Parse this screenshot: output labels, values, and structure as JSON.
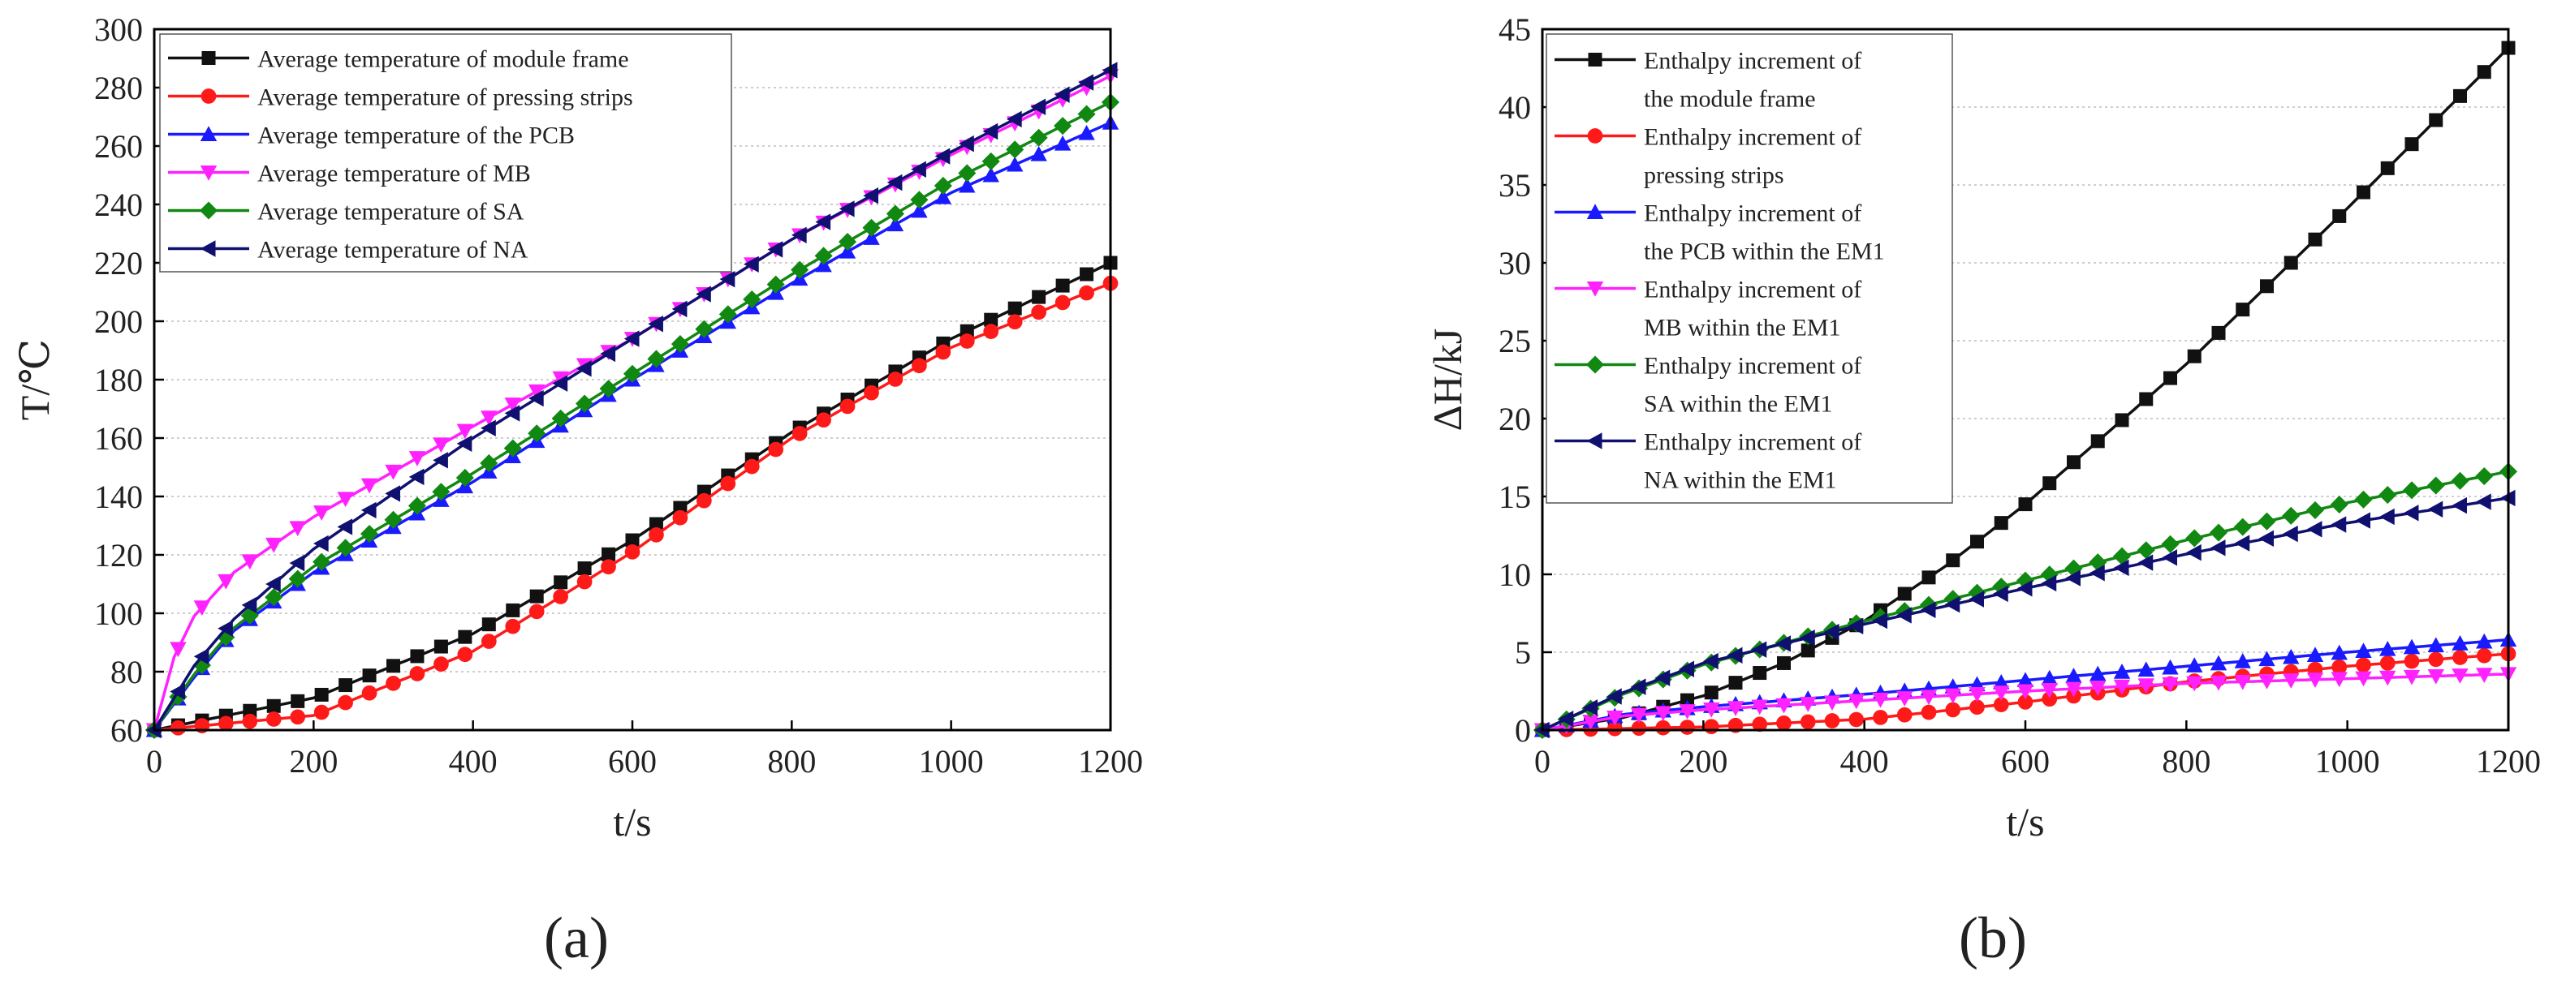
{
  "figure": {
    "panels": [
      "(a)",
      "(b)"
    ]
  },
  "chart_data": [
    {
      "type": "line",
      "panel_label": "(a)",
      "title": "",
      "xlabel": "t/s",
      "ylabel": "T/℃",
      "xlim": [
        0,
        1200
      ],
      "ylim": [
        60,
        300
      ],
      "xticks": [
        0,
        200,
        400,
        600,
        800,
        1000,
        1200
      ],
      "yticks": [
        60,
        80,
        100,
        120,
        140,
        160,
        180,
        200,
        220,
        240,
        260,
        280,
        300
      ],
      "grid": "horizontal-dotted",
      "legend_position": "top-left",
      "marker_interval": 30,
      "series": [
        {
          "name": "Average temperature of module frame",
          "color": "#111111",
          "marker": "square",
          "x": [
            0,
            200,
            400,
            600,
            800,
            1000,
            1200
          ],
          "y": [
            60,
            71,
            93,
            125,
            162,
            194,
            220
          ]
        },
        {
          "name": "Average temperature of pressing strips",
          "color": "#ff1a1a",
          "marker": "circle",
          "x": [
            0,
            200,
            400,
            600,
            800,
            1000,
            1200
          ],
          "y": [
            60,
            65,
            87,
            121,
            160,
            191,
            213
          ]
        },
        {
          "name": "Average temperature of the PCB",
          "color": "#1a1aff",
          "marker": "triangle-up",
          "x": [
            0,
            50,
            100,
            200,
            400,
            600,
            800,
            1000,
            1200
          ],
          "y": [
            60,
            78,
            94,
            114,
            145,
            180,
            213,
            244,
            268
          ]
        },
        {
          "name": "Average temperature of MB",
          "color": "#ff22ff",
          "marker": "triangle-down",
          "x": [
            0,
            25,
            50,
            100,
            200,
            400,
            600,
            800,
            1000,
            1200
          ],
          "y": [
            60,
            85,
            99,
            114,
            133,
            164,
            194,
            228,
            257,
            284
          ]
        },
        {
          "name": "Average temperature of SA",
          "color": "#118811",
          "marker": "diamond",
          "x": [
            0,
            50,
            100,
            200,
            400,
            600,
            800,
            1000,
            1200
          ],
          "y": [
            60,
            79,
            95,
            116,
            148,
            182,
            216,
            248,
            275
          ]
        },
        {
          "name": "Average temperature of NA",
          "color": "#101070",
          "marker": "triangle-left",
          "x": [
            0,
            50,
            100,
            200,
            400,
            600,
            800,
            1000,
            1200
          ],
          "y": [
            60,
            82,
            98,
            122,
            160,
            194,
            228,
            258,
            286
          ]
        }
      ]
    },
    {
      "type": "line",
      "panel_label": "(b)",
      "title": "",
      "xlabel": "t/s",
      "ylabel": "ΔH/kJ",
      "xlim": [
        0,
        1200
      ],
      "ylim": [
        0,
        45
      ],
      "xticks": [
        0,
        200,
        400,
        600,
        800,
        1000,
        1200
      ],
      "yticks": [
        0,
        5,
        10,
        15,
        20,
        25,
        30,
        35,
        40,
        45
      ],
      "grid": "horizontal-dotted",
      "legend_position": "top-left",
      "marker_interval": 30,
      "series": [
        {
          "name": "Enthalpy increment of the module frame",
          "legend_lines": [
            "Enthalpy increment of",
            "the module frame"
          ],
          "color": "#111111",
          "marker": "square",
          "x": [
            0,
            100,
            200,
            300,
            400,
            500,
            600,
            800,
            1000,
            1200
          ],
          "y": [
            0,
            0.8,
            2.2,
            4.3,
            7.0,
            10.5,
            14.5,
            23.5,
            33.5,
            43.8
          ]
        },
        {
          "name": "Enthalpy increment of pressing strips",
          "legend_lines": [
            "Enthalpy increment of",
            "pressing strips"
          ],
          "color": "#ff1a1a",
          "marker": "circle",
          "x": [
            0,
            200,
            400,
            600,
            800,
            1000,
            1200
          ],
          "y": [
            0,
            0.2,
            0.7,
            1.8,
            3.1,
            4.1,
            4.9
          ]
        },
        {
          "name": "Enthalpy increment of the PCB within the EM1",
          "legend_lines": [
            "Enthalpy increment of",
            "the PCB within the EM1"
          ],
          "color": "#1a1aff",
          "marker": "triangle-up",
          "x": [
            0,
            100,
            200,
            400,
            600,
            800,
            1000,
            1200
          ],
          "y": [
            0,
            1.0,
            1.5,
            2.3,
            3.2,
            4.1,
            5.0,
            5.8
          ]
        },
        {
          "name": "Enthalpy increment of MB within the EM1",
          "legend_lines": [
            "Enthalpy increment of",
            "MB within the EM1"
          ],
          "color": "#ff22ff",
          "marker": "triangle-down",
          "x": [
            0,
            100,
            200,
            400,
            600,
            800,
            1000,
            1200
          ],
          "y": [
            0,
            0.9,
            1.3,
            1.9,
            2.5,
            3.0,
            3.3,
            3.6
          ]
        },
        {
          "name": "Enthalpy increment of SA within the EM1",
          "legend_lines": [
            "Enthalpy increment of",
            "SA within the EM1"
          ],
          "color": "#118811",
          "marker": "diamond",
          "x": [
            0,
            100,
            200,
            400,
            600,
            800,
            1000,
            1200
          ],
          "y": [
            0,
            2.3,
            4.2,
            7.0,
            9.6,
            12.2,
            14.6,
            16.6
          ]
        },
        {
          "name": "Enthalpy increment of NA within the EM1",
          "legend_lines": [
            "Enthalpy increment of",
            "NA within the EM1"
          ],
          "color": "#101070",
          "marker": "triangle-left",
          "x": [
            0,
            100,
            200,
            400,
            600,
            800,
            1000,
            1200
          ],
          "y": [
            0,
            2.4,
            4.3,
            6.8,
            9.1,
            11.3,
            13.3,
            14.9
          ]
        }
      ]
    }
  ]
}
